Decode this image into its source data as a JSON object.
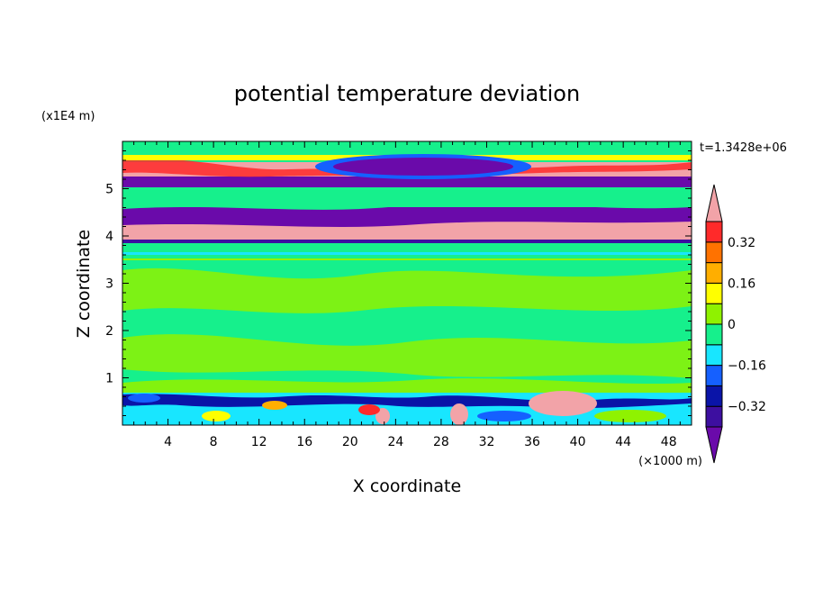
{
  "chart_data": {
    "type": "heatmap",
    "title": "potential temperature deviation",
    "xlabel": "X coordinate",
    "ylabel": "Z coordinate",
    "x_unit": "(×1000 m)",
    "y_unit": "(x1E4 m)",
    "time_label": "t=1.3428e+06",
    "xlim": [
      0,
      50
    ],
    "ylim": [
      0,
      6
    ],
    "x_ticks": [
      4,
      8,
      12,
      16,
      20,
      24,
      28,
      32,
      36,
      40,
      44,
      48
    ],
    "y_ticks": [
      1,
      2,
      3,
      4,
      5
    ],
    "colorbar": {
      "levels": [
        {
          "range": "< -0.40",
          "color": "#6a0aaa"
        },
        {
          "range": "-0.40 to -0.32",
          "color": "#3d0fa0"
        },
        {
          "range": "-0.32 to -0.24",
          "color": "#0a14a8"
        },
        {
          "range": "-0.24 to -0.16",
          "color": "#1560ff"
        },
        {
          "range": "-0.16 to -0.08",
          "color": "#18e6ff"
        },
        {
          "range": "-0.08 to 0",
          "color": "#16f08c"
        },
        {
          "range": "0 to 0.08",
          "color": "#8ff200"
        },
        {
          "range": "0.08 to 0.16",
          "color": "#ffff00"
        },
        {
          "range": "0.16 to 0.24",
          "color": "#ffae00"
        },
        {
          "range": "0.24 to 0.32",
          "color": "#ff7200"
        },
        {
          "range": "0.32 to 0.40",
          "color": "#ff2a2a"
        },
        {
          "range": "> 0.40",
          "color": "#f2a3a8"
        }
      ],
      "tick_labels": [
        "0.32",
        "0.16",
        "0",
        "−0.16",
        "−0.32"
      ],
      "tick_values": [
        0.32,
        0.16,
        0,
        -0.16,
        -0.32
      ],
      "range": [
        -0.4,
        0.4
      ]
    },
    "regions": [
      {
        "y_from": 0,
        "y_to": 0.72,
        "value": "mixed, strong deviations (boundary layer)"
      },
      {
        "y_from": 0.72,
        "y_to": 3.5,
        "value": "near zero (-0.08 to 0.08)"
      },
      {
        "y_from": 3.5,
        "y_to": 3.8,
        "value": "slightly negative"
      },
      {
        "y_from": 3.8,
        "y_to": 4.2,
        "value": "> 0.40"
      },
      {
        "y_from": 4.2,
        "y_to": 4.6,
        "value": "< -0.40"
      },
      {
        "y_from": 4.6,
        "y_to": 5.1,
        "value": "near zero"
      },
      {
        "y_from": 5.1,
        "y_to": 5.3,
        "value": "< -0.40"
      },
      {
        "y_from": 5.3,
        "y_to": 5.5,
        "value": "> 0.40"
      },
      {
        "y_from": 5.5,
        "y_to": 6.0,
        "value": "mixed, negative pocket near x=20-30"
      }
    ]
  }
}
